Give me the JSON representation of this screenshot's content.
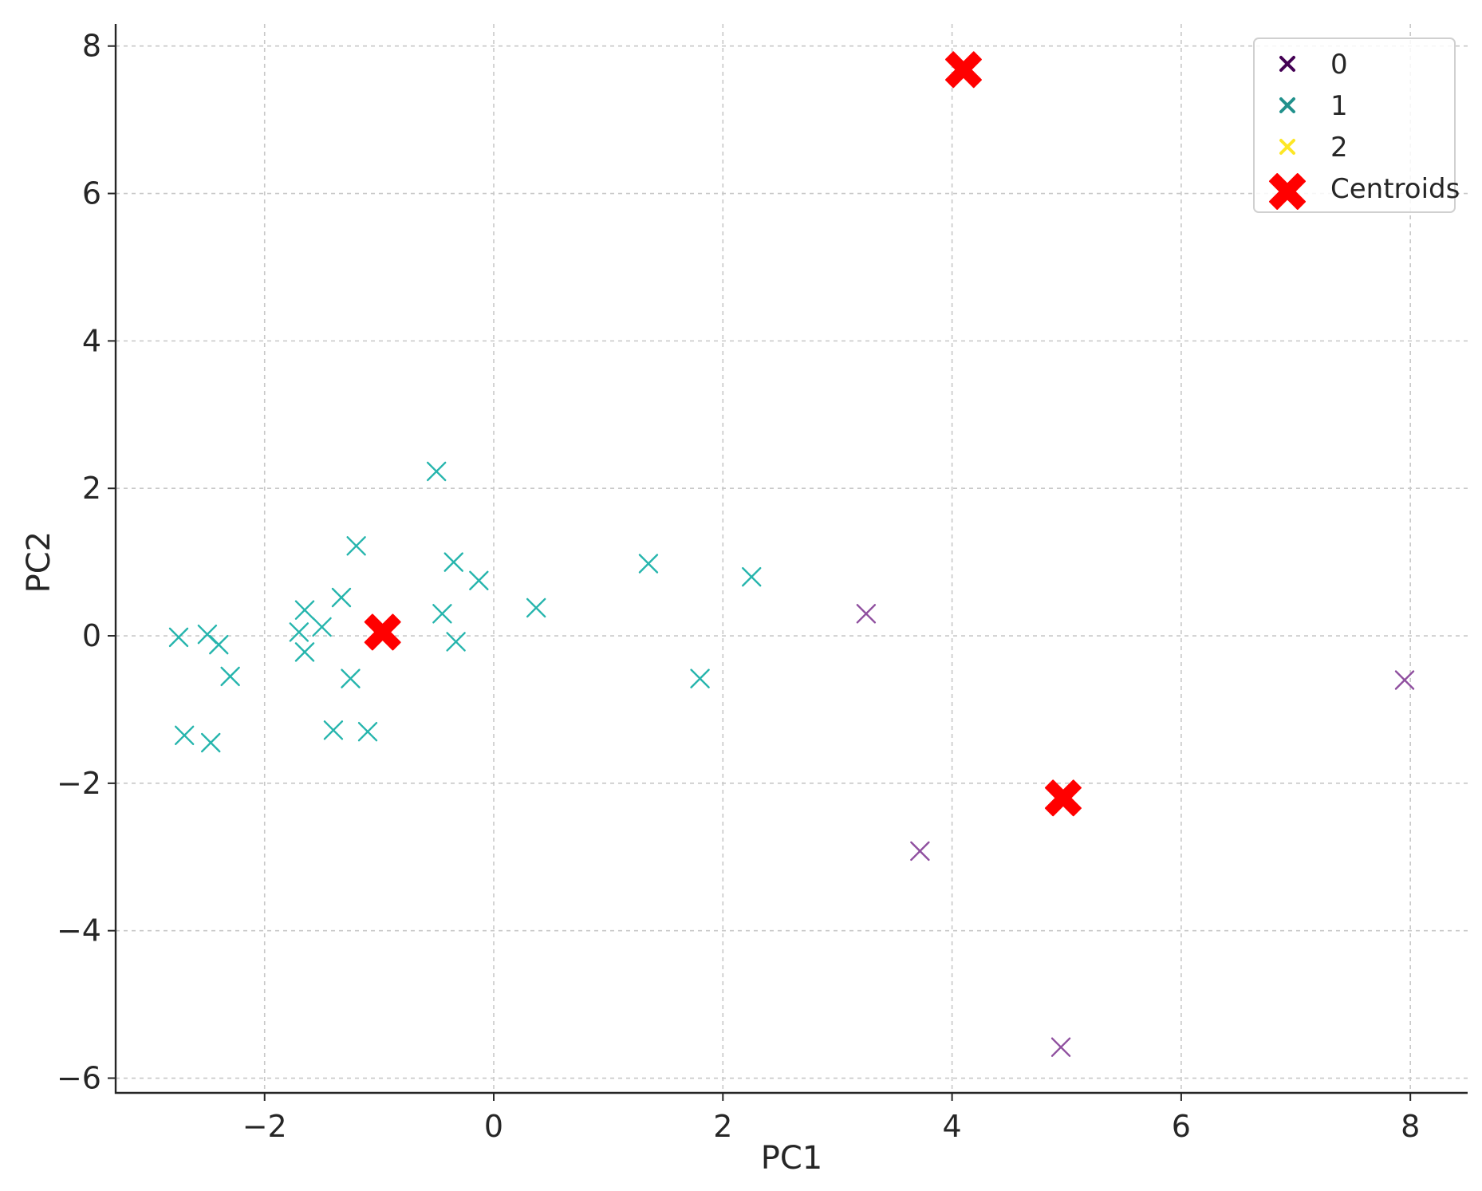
{
  "chart_data": {
    "type": "scatter",
    "xlabel": "PC1",
    "ylabel": "PC2",
    "xlim": [
      -3.3,
      8.5
    ],
    "ylim": [
      -6.2,
      8.3
    ],
    "xticks": [
      -2,
      0,
      2,
      4,
      6,
      8
    ],
    "yticks": [
      -6,
      -4,
      -2,
      0,
      2,
      4,
      6,
      8
    ],
    "xtick_labels": [
      "−2",
      "0",
      "2",
      "4",
      "6",
      "8"
    ],
    "ytick_labels": [
      "−6",
      "−4",
      "−2",
      "0",
      "2",
      "4",
      "6",
      "8"
    ],
    "grid": true,
    "legend_position": "top-right",
    "series": [
      {
        "name": "0",
        "color": "#440154",
        "plot_color": "#8f4f9f",
        "marker": "x",
        "points": [
          [
            3.25,
            0.3
          ],
          [
            3.72,
            -2.92
          ],
          [
            4.95,
            -5.58
          ],
          [
            7.95,
            -0.6
          ]
        ]
      },
      {
        "name": "1",
        "color": "#21918c",
        "plot_color": "#26b5ad",
        "marker": "x",
        "points": [
          [
            -2.75,
            -0.02
          ],
          [
            -2.5,
            0.02
          ],
          [
            -2.4,
            -0.12
          ],
          [
            -2.3,
            -0.55
          ],
          [
            -2.7,
            -1.35
          ],
          [
            -2.47,
            -1.45
          ],
          [
            -1.7,
            0.05
          ],
          [
            -1.65,
            0.35
          ],
          [
            -1.65,
            -0.22
          ],
          [
            -1.5,
            0.12
          ],
          [
            -1.33,
            0.52
          ],
          [
            -1.2,
            1.22
          ],
          [
            -1.25,
            -0.58
          ],
          [
            -1.4,
            -1.28
          ],
          [
            -1.1,
            -1.3
          ],
          [
            -0.5,
            2.23
          ],
          [
            -0.35,
            1.0
          ],
          [
            -0.45,
            0.3
          ],
          [
            -0.33,
            -0.08
          ],
          [
            -0.13,
            0.75
          ],
          [
            0.37,
            0.38
          ],
          [
            1.35,
            0.98
          ],
          [
            1.8,
            -0.58
          ],
          [
            2.25,
            0.8
          ]
        ]
      },
      {
        "name": "2",
        "color": "#fde725",
        "plot_color": "#fde725",
        "marker": "x",
        "points": []
      }
    ],
    "centroids": {
      "name": "Centroids",
      "color": "#ff0000",
      "marker": "X",
      "points": [
        [
          -0.97,
          0.05
        ],
        [
          4.1,
          7.68
        ],
        [
          4.97,
          -2.2
        ]
      ]
    }
  }
}
